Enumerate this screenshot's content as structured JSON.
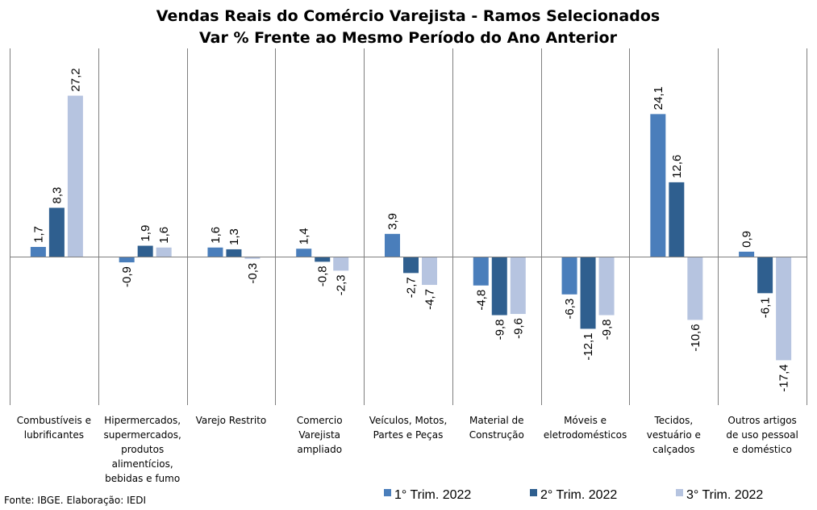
{
  "chart_data": {
    "type": "bar",
    "title_lines": [
      "Vendas Reais do Comércio Varejista - Ramos Selecionados",
      "Var % Frente ao Mesmo Período do Ano Anterior"
    ],
    "categories": [
      [
        "Combustíveis e",
        "lubrificantes"
      ],
      [
        "Hipermercados,",
        "supermercados,",
        "produtos",
        "alimentícios,",
        "bebidas e fumo"
      ],
      [
        "Varejo Restrito"
      ],
      [
        "Comercio",
        "Varejista",
        "ampliado"
      ],
      [
        "Veículos, Motos,",
        "Partes e Peças"
      ],
      [
        "Material de",
        "Construção"
      ],
      [
        "Móveis e",
        "eletrodomésticos"
      ],
      [
        "Tecidos,",
        "vestuário e",
        "calçados"
      ],
      [
        "Outros artigos",
        "de uso pessoal",
        "e doméstico"
      ]
    ],
    "series": [
      {
        "name": "1° Trim. 2022",
        "color": "#4a7ebb",
        "values": [
          1.7,
          -0.9,
          1.6,
          1.4,
          3.9,
          -4.8,
          -6.3,
          24.1,
          0.9
        ],
        "labels": [
          "1,7",
          "-0,9",
          "1,6",
          "1,4",
          "3,9",
          "-4,8",
          "-6,3",
          "24,1",
          "0,9"
        ]
      },
      {
        "name": "2° Trim. 2022",
        "color": "#2f5f8f",
        "values": [
          8.3,
          1.9,
          1.3,
          -0.8,
          -2.7,
          -9.8,
          -12.1,
          12.6,
          -6.1
        ],
        "labels": [
          "8,3",
          "1,9",
          "1,3",
          "-0,8",
          "-2,7",
          "-9,8",
          "-12,1",
          "12,6",
          "-6,1"
        ]
      },
      {
        "name": "3° Trim. 2022",
        "color": "#b6c4e0",
        "values": [
          27.2,
          1.6,
          -0.3,
          -2.3,
          -4.7,
          -9.6,
          -9.8,
          -10.6,
          -17.4
        ],
        "labels": [
          "27,2",
          "1,6",
          "-0,3",
          "-2,3",
          "-4,7",
          "-9,6",
          "-9,8",
          "-10,6",
          "-17,4"
        ]
      }
    ],
    "legend_position": "bottom",
    "grid": false,
    "source": "Fonte: IBGE. Elaboração: IEDI"
  }
}
